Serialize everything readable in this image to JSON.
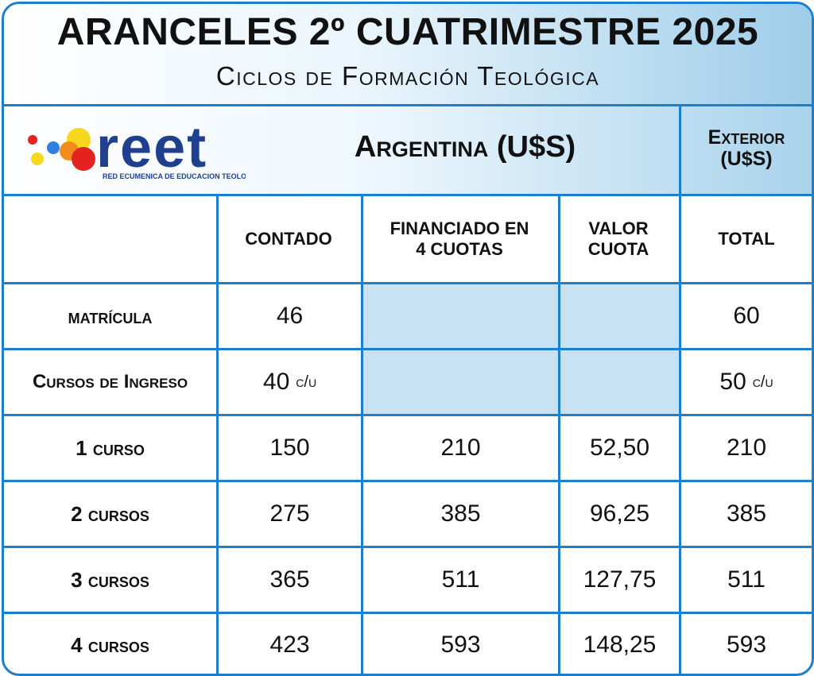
{
  "header": {
    "title": "ARANCELES 2º CUATRIMESTRE 2025",
    "subtitle": "Ciclos de Formación Teológica"
  },
  "logo": {
    "wordmark": "reet",
    "tagline": "RED ECUMENICA DE EDUCACION TEOLOGICA",
    "colors": {
      "navy": "#1f3f8f",
      "orange": "#f28a1c",
      "red": "#e52222",
      "yellow": "#f7d81c",
      "blue": "#2f7ee0"
    }
  },
  "sections": {
    "argentina": "Argentina (U$S)",
    "exterior_line1": "Exterior",
    "exterior_line2": "(U$S)"
  },
  "table": {
    "columns": {
      "contado": "CONTADO",
      "financiado_l1": "FINANCIADO EN",
      "financiado_l2": "4 CUOTAS",
      "valor_l1": "VALOR",
      "valor_l2": "CUOTA",
      "total": "TOTAL"
    },
    "suffix": "c/u",
    "rows": [
      {
        "label": "matrícula",
        "contado": "46",
        "financiado": "",
        "valor": "",
        "total": "60"
      },
      {
        "label": "Cursos de Ingreso",
        "contado": "40",
        "financiado": "",
        "valor": "",
        "total": "50"
      },
      {
        "label": "1 curso",
        "contado": "150",
        "financiado": "210",
        "valor": "52,50",
        "total": "210"
      },
      {
        "label": "2 cursos",
        "contado": "275",
        "financiado": "385",
        "valor": "96,25",
        "total": "385"
      },
      {
        "label": "3 cursos",
        "contado": "365",
        "financiado": "511",
        "valor": "127,75",
        "total": "511"
      },
      {
        "label": "4 cursos",
        "contado": "423",
        "financiado": "593",
        "valor": "148,25",
        "total": "593"
      }
    ]
  },
  "colors": {
    "border": "#1b7fcf",
    "shade": "#c6e2f3",
    "band": "#9fcde9"
  }
}
